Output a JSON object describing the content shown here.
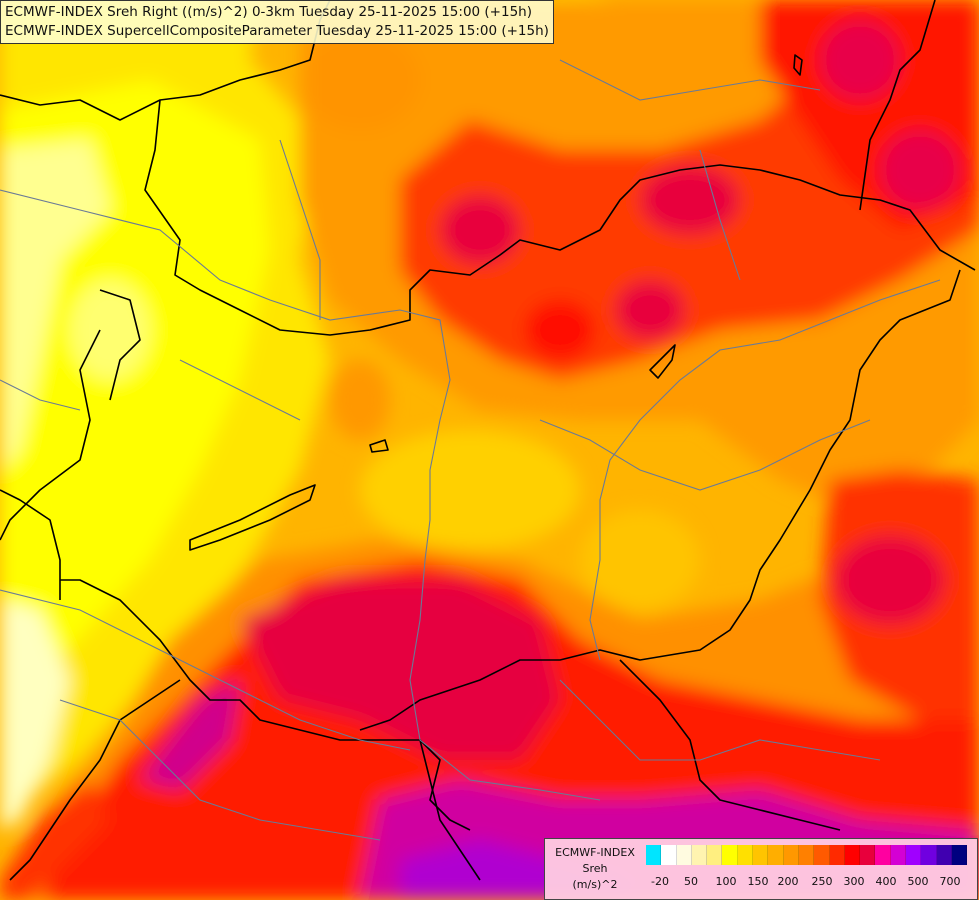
{
  "titles": {
    "line1": "ECMWF-INDEX Sreh Right ((m/s)^2) 0-3km Tuesday 25-11-2025 15:00 (+15h)",
    "line2": "ECMWF-INDEX SupercellCompositeParameter Tuesday 25-11-2025 15:00 (+15h)"
  },
  "legend": {
    "line1": "ECMWF-INDEX",
    "line2": "Sreh",
    "line3": "(m/s)^2",
    "swatches": [
      "#00e5ff",
      "#ffffff",
      "#fffbe0",
      "#fff4b0",
      "#ffef80",
      "#ffff00",
      "#ffe000",
      "#ffc400",
      "#ffae00",
      "#ff9800",
      "#ff8000",
      "#ff5a00",
      "#ff2a00",
      "#ff0000",
      "#e8003c",
      "#ff00a0",
      "#d400d4",
      "#a000ff",
      "#7000e0",
      "#4000b0",
      "#000080"
    ],
    "ticks": [
      "-20",
      "50",
      "100",
      "150",
      "200",
      "250",
      "300",
      "400",
      "500",
      "700"
    ]
  },
  "palette": {
    "deep_yellow": "#ffd400",
    "yellow": "#ffff00",
    "pale_yellow": "#ffff80",
    "light_orange": "#ffb000",
    "orange": "#ff8c00",
    "dark_orange": "#ff6000",
    "red": "#ff1a00",
    "crimson": "#e60040",
    "magenta": "#d400a0",
    "purple": "#b000d0"
  }
}
